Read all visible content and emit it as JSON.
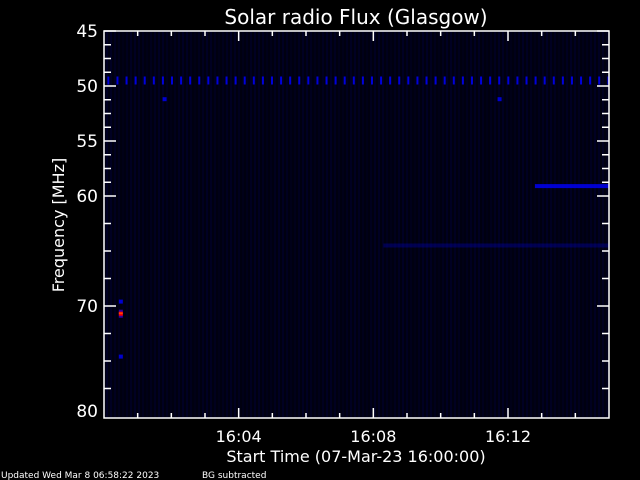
{
  "chart_data": {
    "type": "heatmap",
    "title": "Solar radio Flux (Glasgow)",
    "xlabel": "Start Time (07-Mar-23 16:00:00)",
    "ylabel": "Frequency [MHz]",
    "x_range_minutes_after_16_00": [
      0,
      15
    ],
    "ylim": [
      45,
      80
    ],
    "y_inverted": true,
    "x_ticks": [
      {
        "min": 4,
        "label": "16:04"
      },
      {
        "min": 8,
        "label": "16:08"
      },
      {
        "min": 12,
        "label": "16:12"
      }
    ],
    "y_ticks": [
      "45",
      "50",
      "55",
      "60",
      "70",
      "80"
    ],
    "y_tick_values": [
      45,
      50,
      55,
      60,
      70,
      80
    ],
    "colors": {
      "background": "#000010",
      "low": "#0000ff",
      "high": "#ff0000",
      "mid": "#ff6000"
    },
    "features": {
      "periodic_line": {
        "freq_mhz": 49.5,
        "period_min": 0.27,
        "start_min": 0.1,
        "end_min": 15
      },
      "spots": [
        {
          "t": 0.5,
          "f": 70.7,
          "intensity": "high"
        },
        {
          "t": 0.5,
          "f": 69.6,
          "intensity": "low"
        },
        {
          "t": 0.5,
          "f": 74.6,
          "intensity": "low"
        },
        {
          "t": 1.8,
          "f": 51.2,
          "intensity": "low"
        },
        {
          "t": 11.75,
          "f": 51.2,
          "intensity": "low"
        }
      ],
      "bands": [
        {
          "f": 59.1,
          "t_start": 12.8,
          "t_end": 15,
          "intensity": 0.8
        },
        {
          "f": 64.5,
          "t_start": 8.3,
          "t_end": 15,
          "intensity": 0.25
        }
      ]
    }
  },
  "footer": {
    "updated": "Updated Wed Mar  8 06:58:22 2023",
    "note": "BG subtracted"
  }
}
